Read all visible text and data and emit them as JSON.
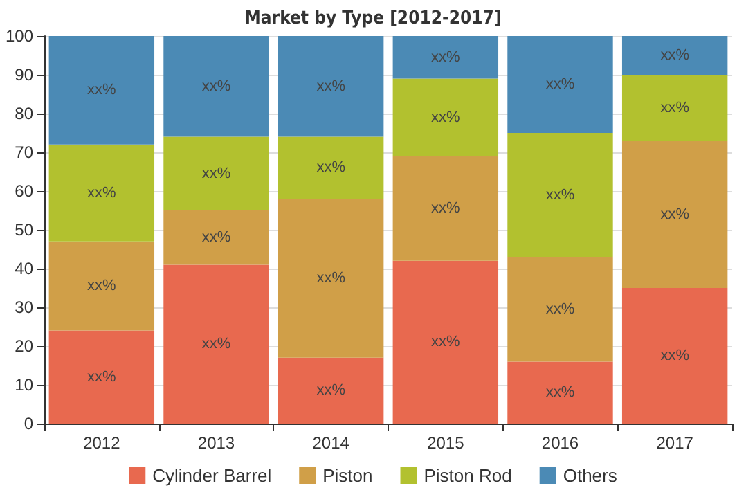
{
  "chart_data": {
    "type": "bar",
    "title": "Market by Type [2012-2017]",
    "stacked": true,
    "categories": [
      "2012",
      "2013",
      "2014",
      "2015",
      "2016",
      "2017"
    ],
    "series": [
      {
        "name": "Cylinder Barrel",
        "color": "#e8694f",
        "values": [
          24,
          41,
          17,
          42,
          16,
          35
        ],
        "value_labels": [
          "xx%",
          "xx%",
          "xx%",
          "xx%",
          "xx%",
          "xx%"
        ]
      },
      {
        "name": "Piston",
        "color": "#d09f48",
        "values": [
          23,
          14,
          41,
          27,
          27,
          38
        ],
        "value_labels": [
          "xx%",
          "xx%",
          "xx%",
          "xx%",
          "xx%",
          "xx%"
        ]
      },
      {
        "name": "Piston Rod",
        "color": "#b2c12f",
        "values": [
          25,
          19,
          16,
          20,
          32,
          17
        ],
        "value_labels": [
          "xx%",
          "xx%",
          "xx%",
          "xx%",
          "xx%",
          "xx%"
        ]
      },
      {
        "name": "Others",
        "color": "#4b8ab5",
        "values": [
          28,
          26,
          26,
          11,
          25,
          10
        ],
        "value_labels": [
          "xx%",
          "xx%",
          "xx%",
          "xx%",
          "xx%",
          "xx%"
        ]
      }
    ],
    "ylim": [
      0,
      100
    ],
    "yticks": [
      0,
      10,
      20,
      30,
      40,
      50,
      60,
      70,
      80,
      90,
      100
    ],
    "grid": "y",
    "legend": "bottom"
  }
}
